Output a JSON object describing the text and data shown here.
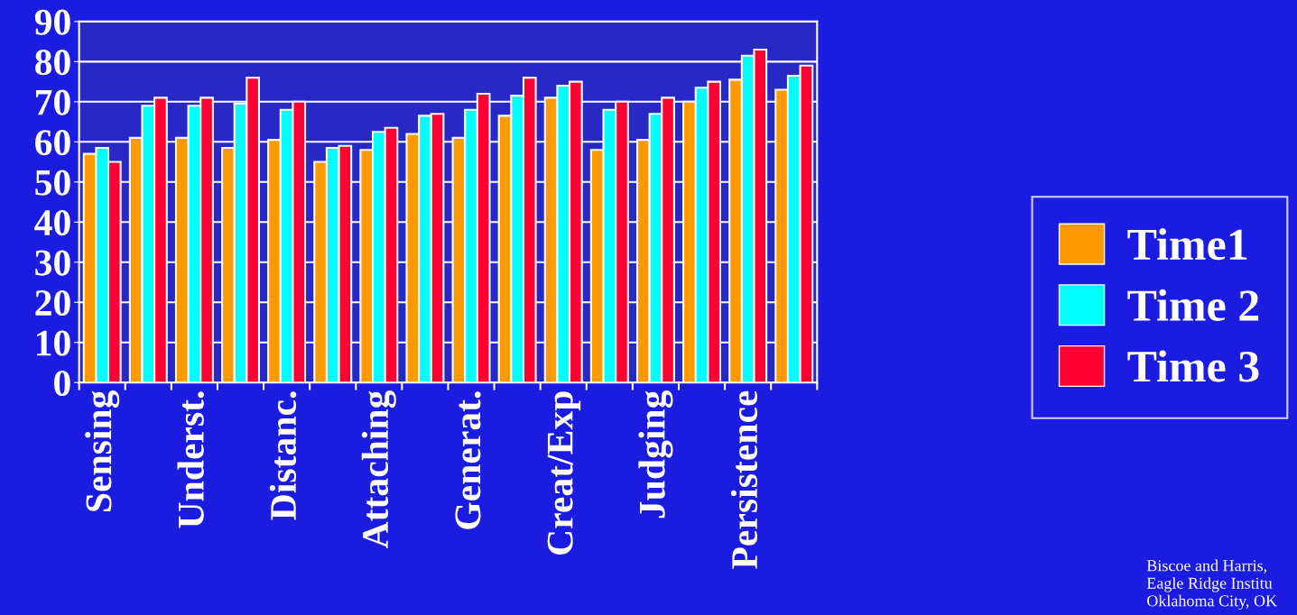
{
  "chart_data": {
    "type": "bar",
    "categories": [
      "Sensing",
      null,
      "Underst.",
      null,
      "Distanc.",
      null,
      "Attaching",
      null,
      "Generat.",
      null,
      "Creat/Exp",
      null,
      "Judging",
      null,
      "Persistence",
      null
    ],
    "series": [
      {
        "name": "Time1",
        "color": "#ff9900",
        "values": [
          57,
          61,
          61,
          58.5,
          60.5,
          55,
          58,
          62,
          61,
          66.5,
          71,
          58,
          60.5,
          70,
          75.5,
          73
        ]
      },
      {
        "name": "Time 2",
        "color": "#00ffff",
        "values": [
          58.5,
          69,
          69,
          69.5,
          68,
          58.5,
          62.5,
          66.5,
          68,
          71.5,
          74,
          68,
          67,
          73.5,
          81.5,
          76.5
        ]
      },
      {
        "name": "Time 3",
        "color": "#ff0033",
        "values": [
          55,
          71,
          71,
          76,
          70,
          59,
          63.5,
          67,
          72,
          76,
          75,
          70,
          71,
          75,
          83,
          79
        ]
      }
    ],
    "ylim": [
      0,
      90
    ],
    "yticks": [
      0,
      10,
      20,
      30,
      40,
      50,
      60,
      70,
      80,
      90
    ],
    "grid": "y",
    "legend": "right",
    "annotations": [
      "Biscoe and Harris,\nEagle Ridge Institu\nOklahoma City, OK"
    ]
  }
}
